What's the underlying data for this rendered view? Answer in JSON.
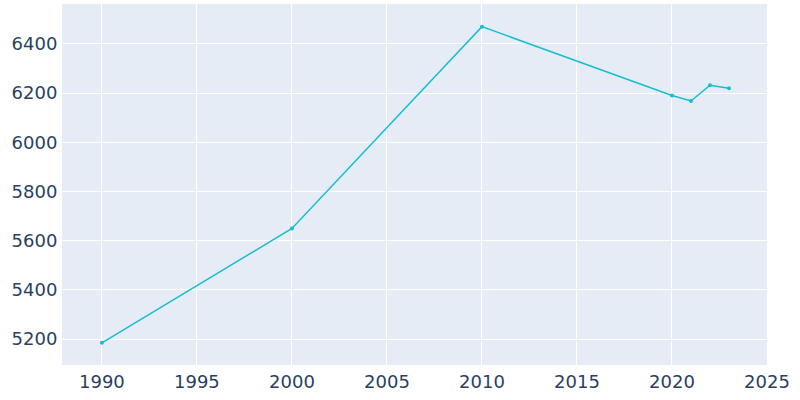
{
  "chart_data": {
    "type": "line",
    "x": [
      1990,
      2000,
      2010,
      2020,
      2021,
      2022,
      2023
    ],
    "values": [
      5185,
      5650,
      6470,
      6190,
      6168,
      6232,
      6220
    ],
    "color": "#17becf",
    "marker": "circle",
    "line_style": "solid",
    "xlim": [
      1987.9,
      2025
    ],
    "xticks": [
      1990,
      1995,
      2000,
      2005,
      2010,
      2015,
      2020,
      2025
    ],
    "ylim": [
      5095,
      6562
    ],
    "yticks": [
      5200,
      5400,
      5600,
      5800,
      6000,
      6200,
      6400
    ],
    "grid": true
  }
}
